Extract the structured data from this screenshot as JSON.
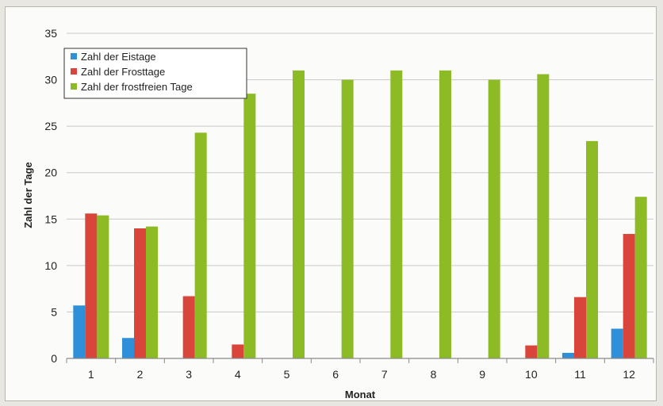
{
  "chart_data": {
    "type": "bar",
    "title": "",
    "xlabel": "Monat",
    "ylabel": "Zahl der Tage",
    "ylim": [
      0,
      35
    ],
    "yticks": [
      0,
      5,
      10,
      15,
      20,
      25,
      30,
      35
    ],
    "grid": true,
    "legend_position": "top-left",
    "categories": [
      "1",
      "2",
      "3",
      "4",
      "5",
      "6",
      "7",
      "8",
      "9",
      "10",
      "11",
      "12"
    ],
    "series": [
      {
        "name": "Zahl der Eistage",
        "color": "#2f8fd8",
        "values": [
          5.7,
          2.2,
          0,
          0,
          0,
          0,
          0,
          0,
          0,
          0,
          0.6,
          3.2
        ]
      },
      {
        "name": "Zahl der Frosttage",
        "color": "#d9453b",
        "values": [
          15.6,
          14.0,
          6.7,
          1.5,
          0,
          0,
          0,
          0,
          0,
          1.4,
          6.6,
          13.4
        ]
      },
      {
        "name": "Zahl der frostfreien Tage",
        "color": "#8cbb26",
        "values": [
          15.4,
          14.2,
          24.3,
          28.5,
          31.0,
          30.0,
          31.0,
          31.0,
          30.0,
          30.6,
          23.4,
          17.4
        ]
      }
    ]
  }
}
